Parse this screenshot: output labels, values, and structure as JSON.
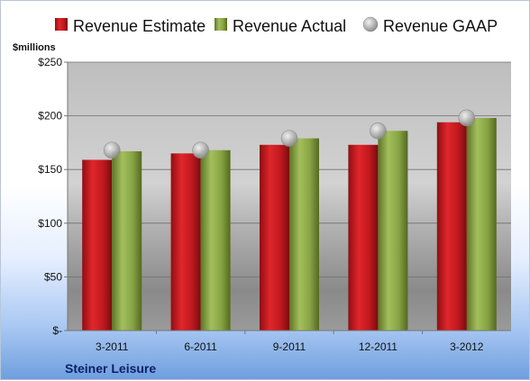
{
  "colors": {
    "estimate": "#c0191e",
    "actual": "#7d9a3c",
    "gaap": "#a8a8a8",
    "company": "#0b1f66"
  },
  "chart_data": {
    "type": "bar",
    "unit_label": "$millions",
    "company": "Steiner Leisure",
    "categories": [
      "3-2011",
      "6-2011",
      "9-2011",
      "12-2011",
      "3-2012"
    ],
    "series": [
      {
        "name": "Revenue Estimate",
        "type": "bar",
        "values": [
          159,
          165,
          173,
          173,
          194
        ]
      },
      {
        "name": "Revenue Actual",
        "type": "bar",
        "values": [
          167,
          168,
          179,
          186,
          198
        ]
      },
      {
        "name": "Revenue GAAP",
        "type": "marker",
        "values": [
          168,
          168,
          179,
          186,
          198
        ]
      }
    ],
    "ylim": [
      0,
      250
    ],
    "yticks": [
      0,
      50,
      100,
      150,
      200,
      250
    ],
    "ytick_labels": [
      "$-",
      "$50",
      "$100",
      "$150",
      "$200",
      "$250"
    ],
    "grid": true,
    "legend_position": "top"
  }
}
